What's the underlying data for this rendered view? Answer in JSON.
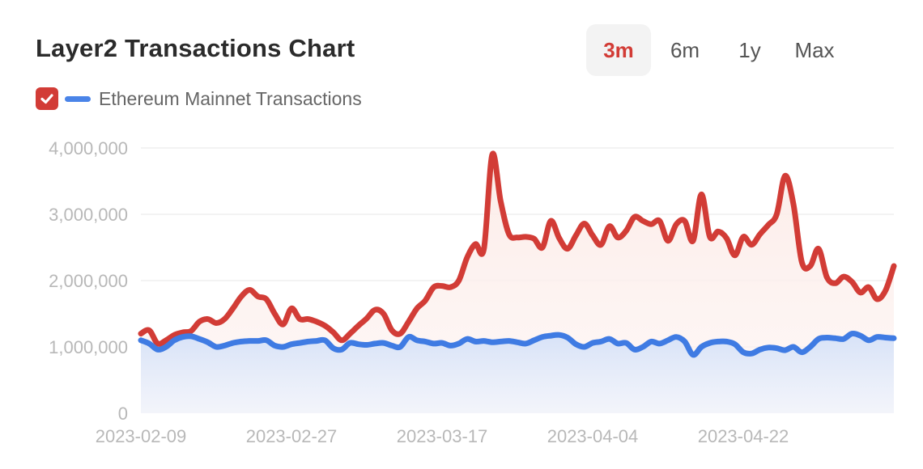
{
  "header": {
    "title": "Layer2 Transactions Chart"
  },
  "ranges": [
    {
      "label": "3m",
      "active": true
    },
    {
      "label": "6m",
      "active": false
    },
    {
      "label": "1y",
      "active": false
    },
    {
      "label": "Max",
      "active": false
    }
  ],
  "legend": {
    "label": "Ethereum Mainnet Transactions",
    "checked": true,
    "check_color": "#d23c36",
    "swatch_color": "#4a84e8"
  },
  "chart_data": {
    "type": "area",
    "title": "Layer2 Transactions Chart",
    "xlabel": "",
    "ylabel": "",
    "ylim": [
      0,
      4000000
    ],
    "y_ticks": [
      0,
      1000000,
      2000000,
      3000000,
      4000000
    ],
    "y_tick_labels": [
      "0",
      "1,000,000",
      "2,000,000",
      "3,000,000",
      "4,000,000"
    ],
    "x_ticks": [
      "2023-02-09",
      "2023-02-27",
      "2023-03-17",
      "2023-04-04",
      "2023-04-22"
    ],
    "x_range": [
      "2023-02-09",
      "2023-05-10"
    ],
    "grid": true,
    "legend_position": "top-left",
    "series": [
      {
        "color": "#d23c36",
        "fill": "#fbe3de",
        "points": [
          [
            "2023-02-09",
            1200000
          ],
          [
            "2023-02-10",
            1250000
          ],
          [
            "2023-02-11",
            1050000
          ],
          [
            "2023-02-12",
            1100000
          ],
          [
            "2023-02-13",
            1180000
          ],
          [
            "2023-02-14",
            1220000
          ],
          [
            "2023-02-15",
            1240000
          ],
          [
            "2023-02-16",
            1380000
          ],
          [
            "2023-02-17",
            1420000
          ],
          [
            "2023-02-18",
            1360000
          ],
          [
            "2023-02-19",
            1420000
          ],
          [
            "2023-02-20",
            1580000
          ],
          [
            "2023-02-21",
            1760000
          ],
          [
            "2023-02-22",
            1860000
          ],
          [
            "2023-02-23",
            1760000
          ],
          [
            "2023-02-24",
            1720000
          ],
          [
            "2023-02-25",
            1500000
          ],
          [
            "2023-02-26",
            1340000
          ],
          [
            "2023-02-27",
            1580000
          ],
          [
            "2023-02-28",
            1420000
          ],
          [
            "2023-03-01",
            1420000
          ],
          [
            "2023-03-02",
            1380000
          ],
          [
            "2023-03-03",
            1320000
          ],
          [
            "2023-03-04",
            1220000
          ],
          [
            "2023-03-05",
            1100000
          ],
          [
            "2023-03-06",
            1200000
          ],
          [
            "2023-03-07",
            1320000
          ],
          [
            "2023-03-08",
            1430000
          ],
          [
            "2023-03-09",
            1560000
          ],
          [
            "2023-03-10",
            1500000
          ],
          [
            "2023-03-11",
            1250000
          ],
          [
            "2023-03-12",
            1200000
          ],
          [
            "2023-03-13",
            1380000
          ],
          [
            "2023-03-14",
            1580000
          ],
          [
            "2023-03-15",
            1700000
          ],
          [
            "2023-03-16",
            1900000
          ],
          [
            "2023-03-17",
            1920000
          ],
          [
            "2023-03-18",
            1900000
          ],
          [
            "2023-03-19",
            2000000
          ],
          [
            "2023-03-20",
            2350000
          ],
          [
            "2023-03-21",
            2550000
          ],
          [
            "2023-03-22",
            2480000
          ],
          [
            "2023-03-23",
            3900000
          ],
          [
            "2023-03-24",
            3200000
          ],
          [
            "2023-03-25",
            2700000
          ],
          [
            "2023-03-26",
            2650000
          ],
          [
            "2023-03-27",
            2660000
          ],
          [
            "2023-03-28",
            2630000
          ],
          [
            "2023-03-29",
            2500000
          ],
          [
            "2023-03-30",
            2900000
          ],
          [
            "2023-03-31",
            2640000
          ],
          [
            "2023-04-01",
            2480000
          ],
          [
            "2023-04-02",
            2680000
          ],
          [
            "2023-04-03",
            2860000
          ],
          [
            "2023-04-04",
            2680000
          ],
          [
            "2023-04-05",
            2540000
          ],
          [
            "2023-04-06",
            2820000
          ],
          [
            "2023-04-07",
            2650000
          ],
          [
            "2023-04-08",
            2750000
          ],
          [
            "2023-04-09",
            2960000
          ],
          [
            "2023-04-10",
            2900000
          ],
          [
            "2023-04-11",
            2850000
          ],
          [
            "2023-04-12",
            2900000
          ],
          [
            "2023-04-13",
            2600000
          ],
          [
            "2023-04-14",
            2850000
          ],
          [
            "2023-04-15",
            2900000
          ],
          [
            "2023-04-16",
            2600000
          ],
          [
            "2023-04-17",
            3300000
          ],
          [
            "2023-04-18",
            2660000
          ],
          [
            "2023-04-19",
            2740000
          ],
          [
            "2023-04-20",
            2640000
          ],
          [
            "2023-04-21",
            2380000
          ],
          [
            "2023-04-22",
            2660000
          ],
          [
            "2023-04-23",
            2540000
          ],
          [
            "2023-04-24",
            2700000
          ],
          [
            "2023-04-25",
            2840000
          ],
          [
            "2023-04-26",
            3000000
          ],
          [
            "2023-04-27",
            3580000
          ],
          [
            "2023-04-28",
            3150000
          ],
          [
            "2023-04-29",
            2280000
          ],
          [
            "2023-04-30",
            2220000
          ],
          [
            "2023-05-01",
            2480000
          ],
          [
            "2023-05-02",
            2050000
          ],
          [
            "2023-05-03",
            1960000
          ],
          [
            "2023-05-04",
            2060000
          ],
          [
            "2023-05-05",
            1980000
          ],
          [
            "2023-05-06",
            1820000
          ],
          [
            "2023-05-07",
            1900000
          ],
          [
            "2023-05-08",
            1720000
          ],
          [
            "2023-05-09",
            1850000
          ],
          [
            "2023-05-10",
            2220000
          ]
        ]
      },
      {
        "name": "Ethereum Mainnet Transactions",
        "color": "#3f7be3",
        "fill": "#dfe8f8",
        "points": [
          [
            "2023-02-09",
            1100000
          ],
          [
            "2023-02-10",
            1050000
          ],
          [
            "2023-02-11",
            960000
          ],
          [
            "2023-02-12",
            1000000
          ],
          [
            "2023-02-13",
            1100000
          ],
          [
            "2023-02-14",
            1150000
          ],
          [
            "2023-02-15",
            1160000
          ],
          [
            "2023-02-16",
            1120000
          ],
          [
            "2023-02-17",
            1070000
          ],
          [
            "2023-02-18",
            1000000
          ],
          [
            "2023-02-19",
            1020000
          ],
          [
            "2023-02-20",
            1060000
          ],
          [
            "2023-02-21",
            1080000
          ],
          [
            "2023-02-22",
            1090000
          ],
          [
            "2023-02-23",
            1090000
          ],
          [
            "2023-02-24",
            1100000
          ],
          [
            "2023-02-25",
            1020000
          ],
          [
            "2023-02-26",
            1000000
          ],
          [
            "2023-02-27",
            1040000
          ],
          [
            "2023-02-28",
            1060000
          ],
          [
            "2023-03-01",
            1080000
          ],
          [
            "2023-03-02",
            1090000
          ],
          [
            "2023-03-03",
            1100000
          ],
          [
            "2023-03-04",
            980000
          ],
          [
            "2023-03-05",
            960000
          ],
          [
            "2023-03-06",
            1060000
          ],
          [
            "2023-03-07",
            1040000
          ],
          [
            "2023-03-08",
            1030000
          ],
          [
            "2023-03-09",
            1050000
          ],
          [
            "2023-03-10",
            1060000
          ],
          [
            "2023-03-11",
            1020000
          ],
          [
            "2023-03-12",
            1000000
          ],
          [
            "2023-03-13",
            1150000
          ],
          [
            "2023-03-14",
            1100000
          ],
          [
            "2023-03-15",
            1080000
          ],
          [
            "2023-03-16",
            1050000
          ],
          [
            "2023-03-17",
            1060000
          ],
          [
            "2023-03-18",
            1020000
          ],
          [
            "2023-03-19",
            1050000
          ],
          [
            "2023-03-20",
            1120000
          ],
          [
            "2023-03-21",
            1080000
          ],
          [
            "2023-03-22",
            1090000
          ],
          [
            "2023-03-23",
            1070000
          ],
          [
            "2023-03-24",
            1080000
          ],
          [
            "2023-03-25",
            1090000
          ],
          [
            "2023-03-26",
            1070000
          ],
          [
            "2023-03-27",
            1050000
          ],
          [
            "2023-03-28",
            1100000
          ],
          [
            "2023-03-29",
            1150000
          ],
          [
            "2023-03-30",
            1170000
          ],
          [
            "2023-03-31",
            1180000
          ],
          [
            "2023-04-01",
            1140000
          ],
          [
            "2023-04-02",
            1040000
          ],
          [
            "2023-04-03",
            1000000
          ],
          [
            "2023-04-04",
            1060000
          ],
          [
            "2023-04-05",
            1080000
          ],
          [
            "2023-04-06",
            1120000
          ],
          [
            "2023-04-07",
            1050000
          ],
          [
            "2023-04-08",
            1060000
          ],
          [
            "2023-04-09",
            960000
          ],
          [
            "2023-04-10",
            1000000
          ],
          [
            "2023-04-11",
            1080000
          ],
          [
            "2023-04-12",
            1050000
          ],
          [
            "2023-04-13",
            1100000
          ],
          [
            "2023-04-14",
            1150000
          ],
          [
            "2023-04-15",
            1080000
          ],
          [
            "2023-04-16",
            880000
          ],
          [
            "2023-04-17",
            1000000
          ],
          [
            "2023-04-18",
            1060000
          ],
          [
            "2023-04-19",
            1080000
          ],
          [
            "2023-04-20",
            1080000
          ],
          [
            "2023-04-21",
            1040000
          ],
          [
            "2023-04-22",
            920000
          ],
          [
            "2023-04-23",
            900000
          ],
          [
            "2023-04-24",
            960000
          ],
          [
            "2023-04-25",
            990000
          ],
          [
            "2023-04-26",
            980000
          ],
          [
            "2023-04-27",
            950000
          ],
          [
            "2023-04-28",
            1000000
          ],
          [
            "2023-04-29",
            920000
          ],
          [
            "2023-04-30",
            1000000
          ],
          [
            "2023-05-01",
            1120000
          ],
          [
            "2023-05-02",
            1140000
          ],
          [
            "2023-05-03",
            1130000
          ],
          [
            "2023-05-04",
            1120000
          ],
          [
            "2023-05-05",
            1200000
          ],
          [
            "2023-05-06",
            1170000
          ],
          [
            "2023-05-07",
            1100000
          ],
          [
            "2023-05-08",
            1150000
          ],
          [
            "2023-05-09",
            1140000
          ],
          [
            "2023-05-10",
            1130000
          ]
        ]
      }
    ]
  }
}
